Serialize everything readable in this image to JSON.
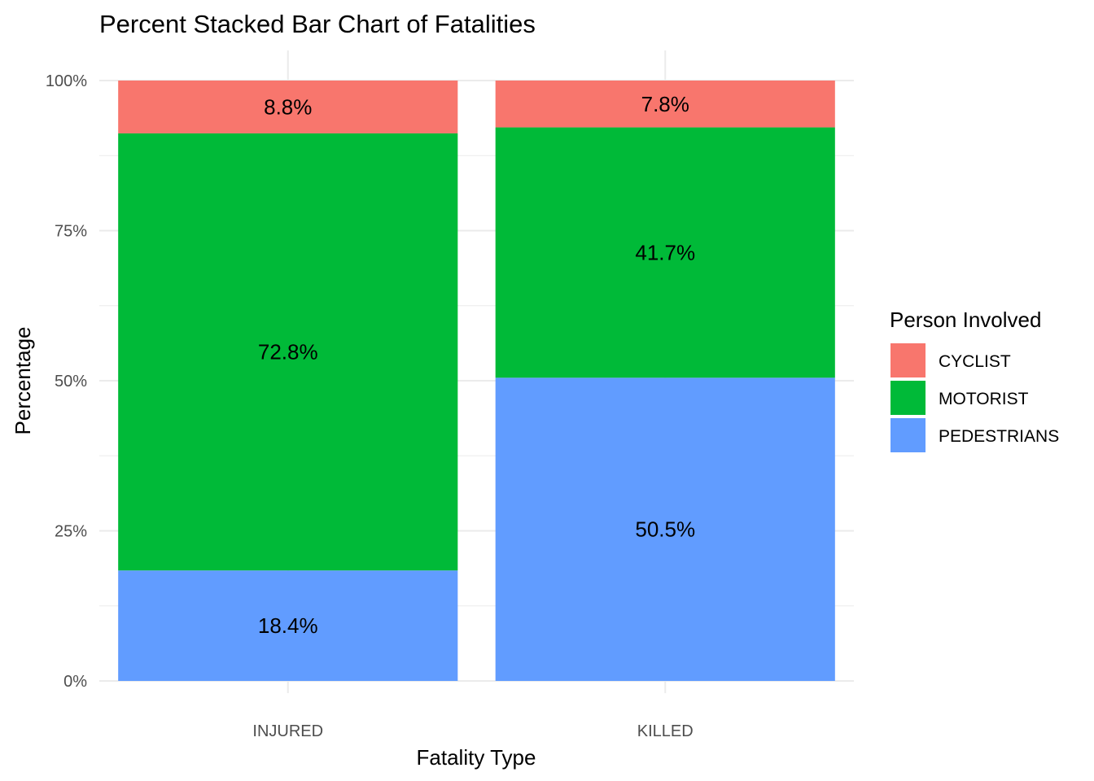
{
  "chart_data": {
    "type": "bar",
    "stacked": "percent",
    "title": "Percent Stacked Bar Chart of Fatalities",
    "xlabel": "Fatality Type",
    "ylabel": "Percentage",
    "categories": [
      "INJURED",
      "KILLED"
    ],
    "ylim": [
      0,
      100
    ],
    "yticks": [
      {
        "value": 0,
        "label": "0%"
      },
      {
        "value": 25,
        "label": "25%"
      },
      {
        "value": 50,
        "label": "50%"
      },
      {
        "value": 75,
        "label": "75%"
      },
      {
        "value": 100,
        "label": "100%"
      }
    ],
    "grid": true,
    "legend_title": "Person Involved",
    "legend_position": "right",
    "series": [
      {
        "name": "PEDESTRIANS",
        "color": "#619CFF",
        "values": [
          18.4,
          50.5
        ],
        "labels": [
          "18.4%",
          "50.5%"
        ]
      },
      {
        "name": "MOTORIST",
        "color": "#00BA38",
        "values": [
          72.8,
          41.7
        ],
        "labels": [
          "72.8%",
          "41.7%"
        ]
      },
      {
        "name": "CYCLIST",
        "color": "#F8766D",
        "values": [
          8.8,
          7.8
        ],
        "labels": [
          "8.8%",
          "7.8%"
        ]
      }
    ],
    "legend_order": [
      "CYCLIST",
      "MOTORIST",
      "PEDESTRIANS"
    ]
  }
}
